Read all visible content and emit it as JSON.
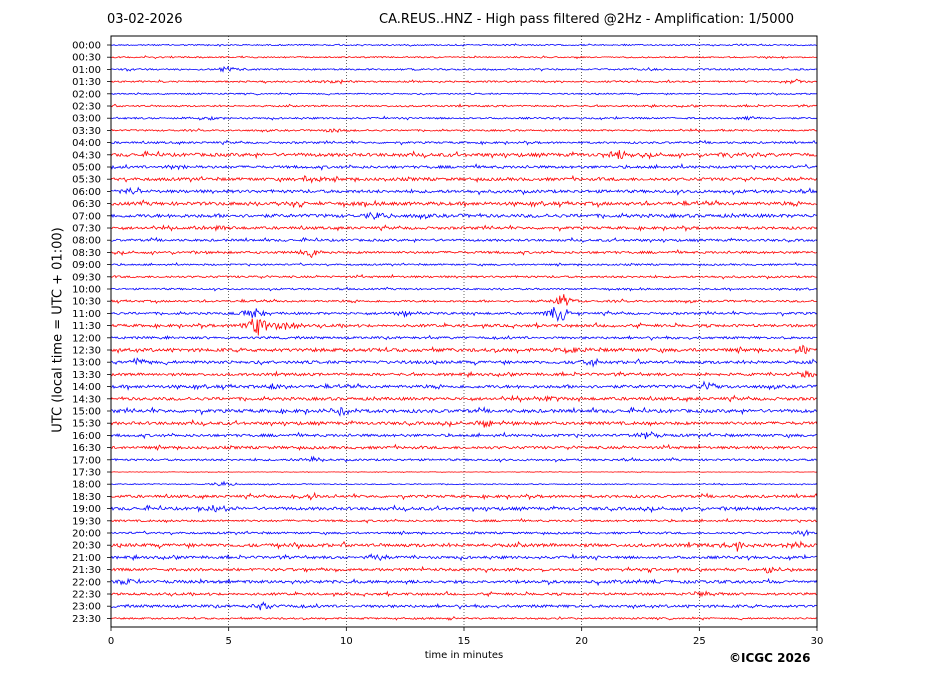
{
  "header": {
    "date": "03-02-2026",
    "title": "CA.REUS..HNZ - High pass filtered @2Hz - Amplification: 1/5000"
  },
  "footer": {
    "copyright": "©ICGC 2026"
  },
  "colors": {
    "trace_a": "#0000ff",
    "trace_b": "#ff0000",
    "grid": "#000000",
    "background": "#ffffff"
  },
  "chart_data": {
    "type": "line",
    "title": "CA.REUS..HNZ - High pass filtered @2Hz - Amplification: 1/5000",
    "xlabel": "time in minutes",
    "ylabel": "UTC (local time = UTC + 01:00)",
    "xlim": [
      0,
      30
    ],
    "xticks": [
      0,
      5,
      10,
      15,
      20,
      25,
      30
    ],
    "grid": "vertical dotted lines at 5-minute intervals",
    "series_colors_alternating": [
      "blue",
      "red"
    ],
    "rows": [
      {
        "label": "00:00",
        "amp": 0.4
      },
      {
        "label": "00:30",
        "amp": 0.4
      },
      {
        "label": "01:00",
        "amp": 0.5,
        "bursts": [
          [
            5,
            1.0
          ]
        ]
      },
      {
        "label": "01:30",
        "amp": 0.5,
        "bursts": [
          [
            9.5,
            0.8
          ],
          [
            29,
            0.9
          ]
        ]
      },
      {
        "label": "02:00",
        "amp": 0.4
      },
      {
        "label": "02:30",
        "amp": 0.5
      },
      {
        "label": "03:00",
        "amp": 0.5,
        "bursts": [
          [
            4,
            0.8
          ],
          [
            27,
            0.8
          ]
        ]
      },
      {
        "label": "03:30",
        "amp": 0.5,
        "bursts": [
          [
            9.5,
            0.8
          ]
        ]
      },
      {
        "label": "04:00",
        "amp": 0.6
      },
      {
        "label": "04:30",
        "amp": 1.0,
        "bursts": [
          [
            21.5,
            1.6
          ],
          [
            27,
            1.4
          ]
        ]
      },
      {
        "label": "05:00",
        "amp": 0.8,
        "bursts": [
          [
            3,
            1.2
          ]
        ]
      },
      {
        "label": "05:30",
        "amp": 0.9,
        "bursts": [
          [
            8.5,
            1.4
          ]
        ]
      },
      {
        "label": "06:00",
        "amp": 0.9,
        "bursts": [
          [
            1,
            1.5
          ]
        ]
      },
      {
        "label": "06:30",
        "amp": 1.0,
        "bursts": [
          [
            8,
            1.4
          ]
        ]
      },
      {
        "label": "07:00",
        "amp": 1.0,
        "bursts": [
          [
            11.3,
            1.5
          ]
        ]
      },
      {
        "label": "07:30",
        "amp": 0.8,
        "bursts": [
          [
            4.5,
            1.2
          ]
        ]
      },
      {
        "label": "08:00",
        "amp": 0.7
      },
      {
        "label": "08:30",
        "amp": 0.7,
        "bursts": [
          [
            8.5,
            1.6
          ]
        ]
      },
      {
        "label": "09:00",
        "amp": 0.5
      },
      {
        "label": "09:30",
        "amp": 0.6
      },
      {
        "label": "10:00",
        "amp": 0.5
      },
      {
        "label": "10:30",
        "amp": 0.6,
        "bursts": [
          [
            19.2,
            2.5
          ]
        ]
      },
      {
        "label": "11:00",
        "amp": 0.7,
        "bursts": [
          [
            6.1,
            2.2
          ],
          [
            12.5,
            1.2
          ],
          [
            19.0,
            3.6
          ]
        ]
      },
      {
        "label": "11:30",
        "amp": 0.8,
        "bursts": [
          [
            6.2,
            4.0
          ],
          [
            7.5,
            1.5
          ]
        ]
      },
      {
        "label": "12:00",
        "amp": 0.7
      },
      {
        "label": "12:30",
        "amp": 1.0,
        "bursts": [
          [
            19.5,
            1.6
          ],
          [
            29.5,
            1.6
          ]
        ]
      },
      {
        "label": "13:00",
        "amp": 0.9,
        "bursts": [
          [
            1,
            1.4
          ],
          [
            20.5,
            1.5
          ]
        ]
      },
      {
        "label": "13:30",
        "amp": 0.8,
        "bursts": [
          [
            29.5,
            1.4
          ]
        ]
      },
      {
        "label": "14:00",
        "amp": 0.9,
        "bursts": [
          [
            6.8,
            1.5
          ],
          [
            25.3,
            1.6
          ]
        ]
      },
      {
        "label": "14:30",
        "amp": 0.9,
        "bursts": [
          [
            18.5,
            1.4
          ]
        ]
      },
      {
        "label": "15:00",
        "amp": 1.0,
        "bursts": [
          [
            9.8,
            1.5
          ]
        ]
      },
      {
        "label": "15:30",
        "amp": 0.9,
        "bursts": [
          [
            16,
            1.5
          ]
        ]
      },
      {
        "label": "16:00",
        "amp": 0.8,
        "bursts": [
          [
            22.8,
            1.4
          ]
        ]
      },
      {
        "label": "16:30",
        "amp": 0.8
      },
      {
        "label": "17:00",
        "amp": 0.6,
        "bursts": [
          [
            8.5,
            1.0
          ]
        ]
      },
      {
        "label": "17:30",
        "amp": 0.15
      },
      {
        "label": "18:00",
        "amp": 0.3,
        "bursts": [
          [
            4.8,
            1.0
          ]
        ]
      },
      {
        "label": "18:30",
        "amp": 0.8,
        "bursts": [
          [
            8.5,
            1.2
          ]
        ]
      },
      {
        "label": "19:00",
        "amp": 0.9,
        "bursts": [
          [
            4.5,
            1.4
          ]
        ]
      },
      {
        "label": "19:30",
        "amp": 0.6
      },
      {
        "label": "20:00",
        "amp": 0.6,
        "bursts": [
          [
            29.5,
            1.0
          ]
        ]
      },
      {
        "label": "20:30",
        "amp": 1.0,
        "bursts": [
          [
            26.5,
            1.6
          ],
          [
            29.3,
            1.5
          ]
        ]
      },
      {
        "label": "21:00",
        "amp": 0.8,
        "bursts": [
          [
            11.2,
            1.5
          ]
        ]
      },
      {
        "label": "21:30",
        "amp": 0.8,
        "bursts": [
          [
            28,
            1.2
          ]
        ]
      },
      {
        "label": "22:00",
        "amp": 0.9,
        "bursts": [
          [
            0.8,
            1.4
          ]
        ]
      },
      {
        "label": "22:30",
        "amp": 0.7,
        "bursts": [
          [
            25.2,
            1.2
          ]
        ]
      },
      {
        "label": "23:00",
        "amp": 0.8,
        "bursts": [
          [
            6.5,
            1.4
          ]
        ]
      },
      {
        "label": "23:30",
        "amp": 0.5
      }
    ]
  }
}
